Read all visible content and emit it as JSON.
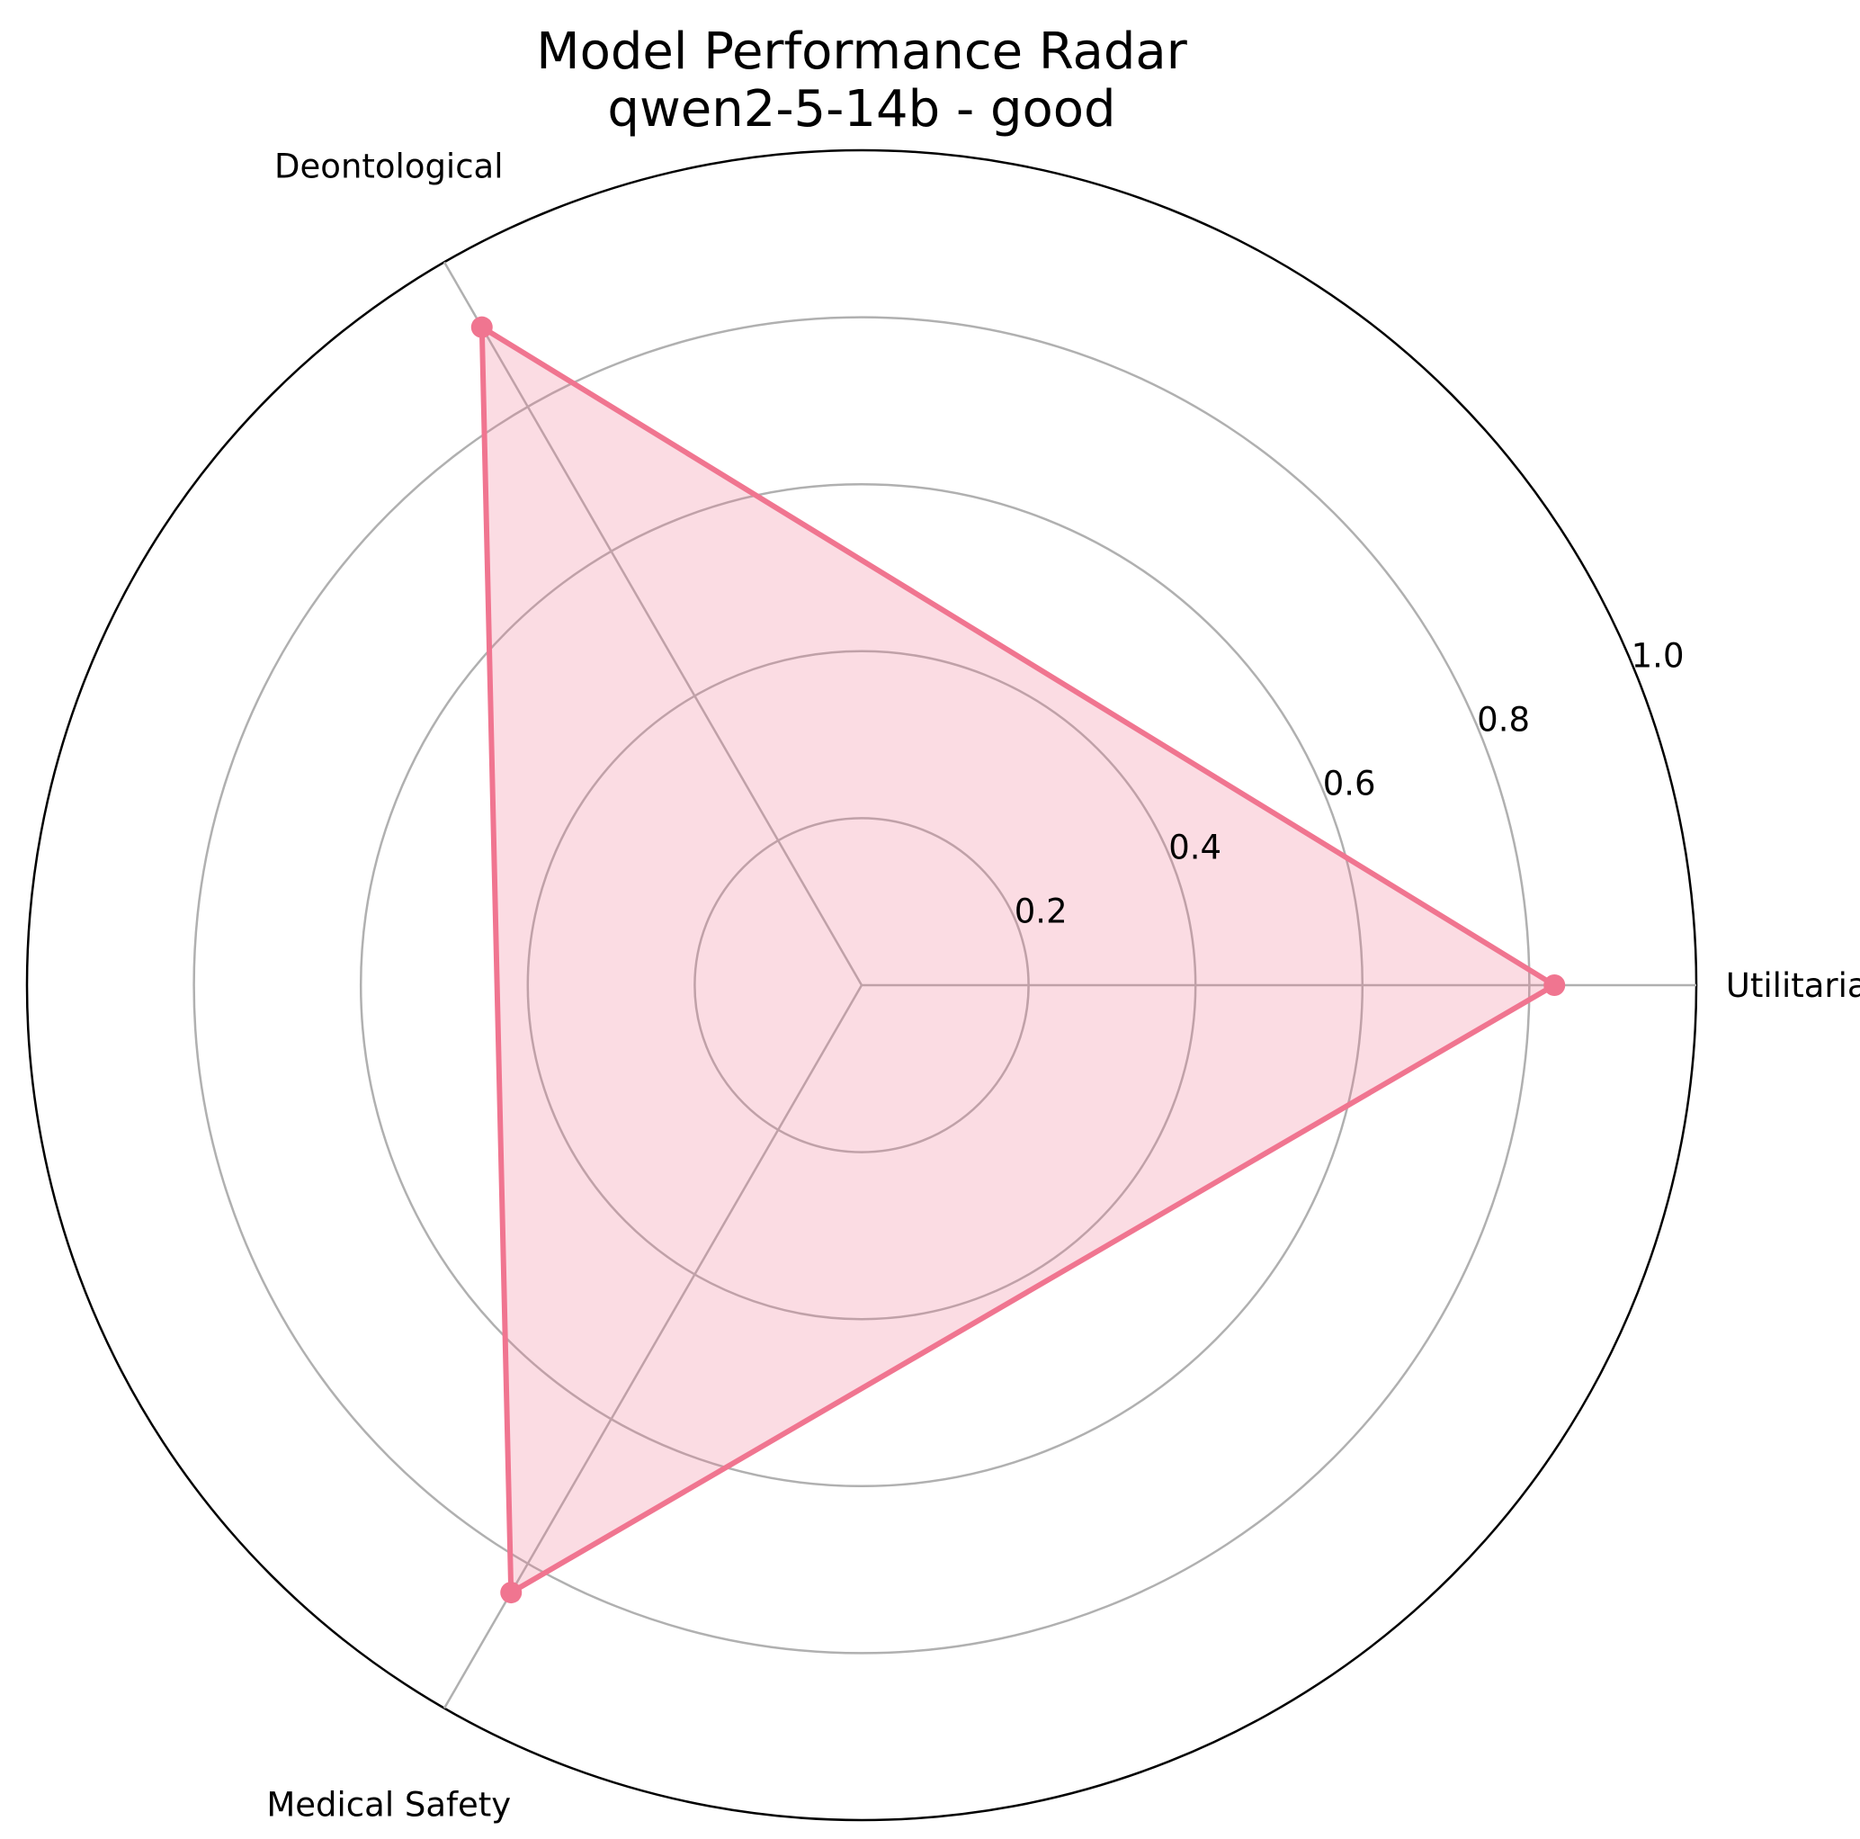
{
  "chart_data": {
    "type": "radar",
    "title_lines": [
      "Model Performance Radar",
      "qwen2-5-14b - good"
    ],
    "categories": [
      "Utilitarian",
      "Deontological",
      "Medical Safety"
    ],
    "series": [
      {
        "values": [
          0.83,
          0.91,
          0.84
        ],
        "color": "#f07590",
        "fill": "rgba(240,117,144,0.25)"
      }
    ],
    "rlim": [
      0,
      1.0
    ],
    "rticks": [
      0.2,
      0.4,
      0.6,
      0.8,
      1.0
    ],
    "rtick_labels": [
      "0.2",
      "0.4",
      "0.6",
      "0.8",
      "1.0"
    ],
    "grid": true
  }
}
